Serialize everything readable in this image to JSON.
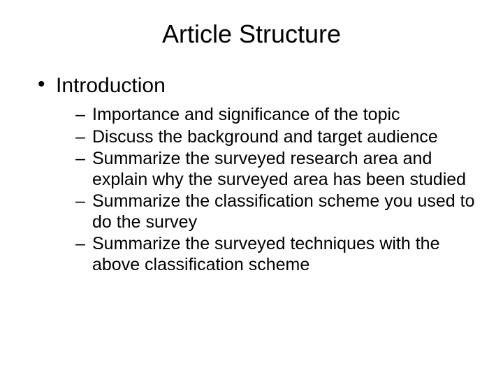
{
  "slide": {
    "title": "Article Structure",
    "title_fontsize": 36,
    "background_color": "#ffffff",
    "text_color": "#000000",
    "font_family": "Arial",
    "bullets": [
      {
        "label": "Introduction",
        "fontsize": 30,
        "children": [
          {
            "label": "Importance and significance of the topic",
            "fontsize": 25
          },
          {
            "label": "Discuss the background and target audience",
            "fontsize": 25
          },
          {
            "label": "Summarize the surveyed research area and explain why the surveyed area has been studied",
            "fontsize": 25
          },
          {
            "label": "Summarize the classification scheme you used to do the survey",
            "fontsize": 25
          },
          {
            "label": "Summarize the surveyed techniques with the above classification scheme",
            "fontsize": 25
          }
        ]
      }
    ]
  }
}
